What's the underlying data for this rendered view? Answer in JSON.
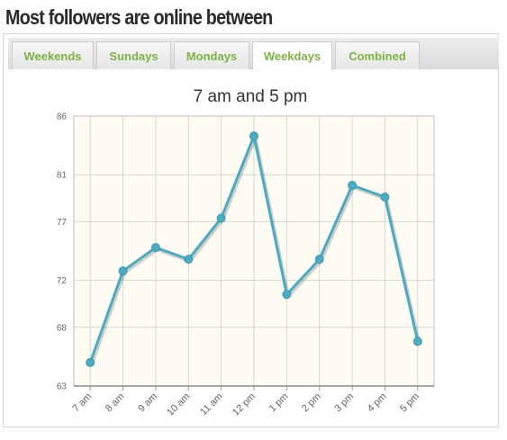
{
  "page": {
    "heading": "Most followers are online between"
  },
  "tabs": [
    {
      "label": "Weekends",
      "active": false
    },
    {
      "label": "Sundays",
      "active": false
    },
    {
      "label": "Mondays",
      "active": false
    },
    {
      "label": "Weekdays",
      "active": true
    },
    {
      "label": "Combined",
      "active": false
    }
  ],
  "colors": {
    "tab_text": "#7cb342",
    "line": "#4aabc2",
    "plot_background": "#fffdf3"
  },
  "chart_data": {
    "type": "line",
    "title": "7 am and 5 pm",
    "xlabel": "",
    "ylabel": "",
    "categories": [
      "7 am",
      "8 am",
      "9 am",
      "10 am",
      "11 am",
      "12 pm",
      "1 pm",
      "2 pm",
      "3 pm",
      "4 pm",
      "5 pm"
    ],
    "series": [
      {
        "values": [
          65,
          72.8,
          74.8,
          73.8,
          77.3,
          84.3,
          70.8,
          73.8,
          80.1,
          79.1,
          66.8
        ]
      }
    ],
    "ylim": [
      63,
      86
    ],
    "yticks": [
      63,
      68,
      72,
      77,
      81,
      86
    ],
    "grid": true,
    "legend": "none"
  }
}
